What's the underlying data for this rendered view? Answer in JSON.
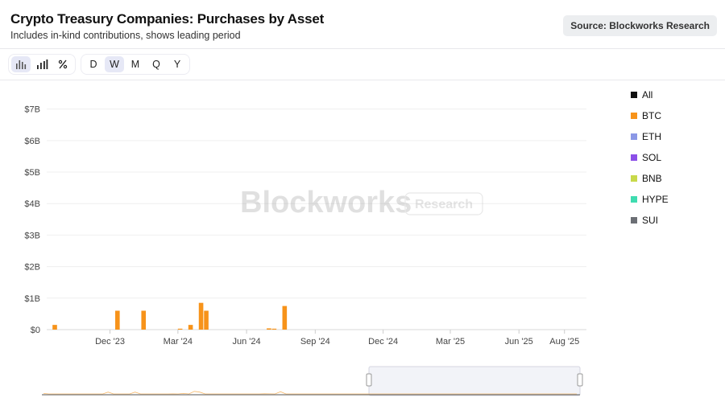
{
  "header": {
    "title": "Crypto Treasury Companies: Purchases by Asset",
    "subtitle": "Includes in-kind contributions, shows leading period",
    "source": "Source: Blockworks Research"
  },
  "toolbar": {
    "chart_types": [
      {
        "icon": "bar-chart-icon",
        "active": true
      },
      {
        "icon": "stacked-bar-icon",
        "active": false
      },
      {
        "icon": "percent-icon",
        "active": false
      }
    ],
    "periods": [
      {
        "label": "D",
        "active": false
      },
      {
        "label": "W",
        "active": true
      },
      {
        "label": "M",
        "active": false
      },
      {
        "label": "Q",
        "active": false
      },
      {
        "label": "Y",
        "active": false
      }
    ]
  },
  "watermark": {
    "brand": "Blockworks",
    "badge": "Research"
  },
  "legend": [
    {
      "label": "All",
      "color": "#111111"
    },
    {
      "label": "BTC",
      "color": "#f7931a"
    },
    {
      "label": "ETH",
      "color": "#8b98e6"
    },
    {
      "label": "SOL",
      "color": "#8b4fe8"
    },
    {
      "label": "BNB",
      "color": "#c8d94a"
    },
    {
      "label": "HYPE",
      "color": "#3fdcb0"
    },
    {
      "label": "SUI",
      "color": "#6c6f75"
    }
  ],
  "chart_data": {
    "type": "bar",
    "stacked": true,
    "title": "Crypto Treasury Companies: Purchases by Asset",
    "subtitle": "Includes in-kind contributions, shows leading period",
    "ylim": [
      0,
      7.4
    ],
    "y_ticks": [
      "$0",
      "$1B",
      "$2B",
      "$3B",
      "$4B",
      "$5B",
      "$6B",
      "$7B"
    ],
    "x_ticks": [
      "Dec '23",
      "Mar '24",
      "Jun '24",
      "Sep '24",
      "Dec '24",
      "Mar '25",
      "Jun '25",
      "Aug '25"
    ],
    "grid": true,
    "legend_position": "right",
    "weeks": [
      "2023-09-18",
      "2023-09-25",
      "2023-10-02",
      "2023-10-09",
      "2023-10-16",
      "2023-10-23",
      "2023-10-30",
      "2023-11-06",
      "2023-11-13",
      "2023-11-20",
      "2023-11-27",
      "2023-12-04",
      "2023-12-11",
      "2023-12-18",
      "2023-12-25",
      "2024-01-01",
      "2024-01-08",
      "2024-01-15",
      "2024-01-22",
      "2024-01-29",
      "2024-02-05",
      "2024-02-12",
      "2024-02-19",
      "2024-02-26",
      "2024-03-04",
      "2024-03-11",
      "2024-03-18",
      "2024-03-25",
      "2024-04-01",
      "2024-04-08",
      "2024-04-15",
      "2024-04-22",
      "2024-04-29",
      "2024-05-06",
      "2024-05-13",
      "2024-05-20",
      "2024-05-27",
      "2024-06-03",
      "2024-06-10",
      "2024-06-17",
      "2024-06-24",
      "2024-07-01",
      "2024-07-08",
      "2024-07-15",
      "2024-07-22",
      "2024-07-29",
      "2024-08-05",
      "2024-08-12",
      "2024-08-19",
      "2024-08-26",
      "2024-09-02",
      "2024-09-09",
      "2024-09-16",
      "2024-09-23",
      "2024-09-30",
      "2024-10-07",
      "2024-10-14",
      "2024-10-21",
      "2024-10-28",
      "2024-11-04",
      "2024-11-11",
      "2024-11-18",
      "2024-11-25",
      "2024-12-02",
      "2024-12-09",
      "2024-12-16",
      "2024-12-23",
      "2024-12-30",
      "2025-01-06",
      "2025-01-13",
      "2025-01-20",
      "2025-01-27",
      "2025-02-03",
      "2025-02-10",
      "2025-02-17",
      "2025-02-24",
      "2025-03-03",
      "2025-03-10",
      "2025-03-17",
      "2025-03-24",
      "2025-03-31",
      "2025-04-07",
      "2025-04-14",
      "2025-04-21",
      "2025-04-28",
      "2025-05-05",
      "2025-05-12",
      "2025-05-19",
      "2025-05-26",
      "2025-06-02",
      "2025-06-09",
      "2025-06-16",
      "2025-06-23",
      "2025-06-30",
      "2025-07-07",
      "2025-07-14",
      "2025-07-21",
      "2025-07-28",
      "2025-08-04",
      "2025-08-11"
    ],
    "series": [
      {
        "name": "BTC",
        "color": "#f7931a",
        "values": [
          0.15,
          0,
          0,
          0,
          0,
          0,
          0,
          0,
          0,
          0,
          0,
          0,
          0.6,
          0,
          0,
          0,
          0,
          0.6,
          0,
          0,
          0,
          0,
          0,
          0,
          0.03,
          0,
          0.15,
          0,
          0.85,
          0.6,
          0,
          0,
          0,
          0,
          0,
          0,
          0,
          0,
          0,
          0,
          0,
          0.04,
          0.03,
          0,
          0.75,
          0,
          0,
          0,
          0,
          0,
          0,
          0,
          0,
          0,
          0,
          0,
          0,
          0,
          0,
          0,
          0,
          0,
          0,
          0,
          0,
          0,
          0,
          0,
          0,
          0,
          0,
          0,
          0,
          0,
          0,
          0,
          0,
          0,
          0,
          0,
          0,
          0,
          0,
          0,
          0,
          0,
          0,
          0,
          0,
          0,
          0,
          0,
          0,
          0,
          0,
          0,
          0,
          0,
          0,
          0
        ]
      },
      {
        "name": "ETH",
        "color": "#8b98e6",
        "values": []
      },
      {
        "name": "SOL",
        "color": "#8b4fe8",
        "values": []
      },
      {
        "name": "BNB",
        "color": "#c8d94a",
        "values": []
      },
      {
        "name": "HYPE",
        "color": "#3fdcb0",
        "values": []
      },
      {
        "name": "SUI",
        "color": "#6c6f75",
        "values": []
      }
    ]
  }
}
